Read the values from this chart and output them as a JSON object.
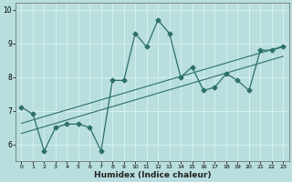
{
  "xlabel": "Humidex (Indice chaleur)",
  "ylabel": "",
  "x_data": [
    0,
    1,
    2,
    3,
    4,
    5,
    6,
    7,
    8,
    9,
    10,
    11,
    12,
    13,
    14,
    15,
    16,
    17,
    18,
    19,
    20,
    21,
    22,
    23
  ],
  "y_data": [
    7.1,
    6.9,
    5.8,
    6.5,
    6.6,
    6.6,
    6.5,
    5.8,
    7.9,
    7.9,
    9.3,
    8.9,
    9.7,
    9.3,
    8.0,
    8.3,
    7.6,
    7.7,
    8.1,
    7.9,
    7.6,
    8.8,
    8.8,
    8.9
  ],
  "line_color": "#2d7068",
  "marker": "D",
  "marker_size": 2.5,
  "background_color": "#b8dede",
  "grid_color": "#d8f0f0",
  "xlim": [
    -0.5,
    23.5
  ],
  "ylim": [
    5.5,
    10.2
  ],
  "yticks": [
    6,
    7,
    8,
    9,
    10
  ],
  "xticks": [
    0,
    1,
    2,
    3,
    4,
    5,
    6,
    7,
    8,
    9,
    10,
    11,
    12,
    13,
    14,
    15,
    16,
    17,
    18,
    19,
    20,
    21,
    22,
    23
  ],
  "regression_color": "#2d7068",
  "regression_lw": 0.8,
  "tick_fontsize": 5.5,
  "xlabel_fontsize": 6.5,
  "line_lw": 0.9
}
